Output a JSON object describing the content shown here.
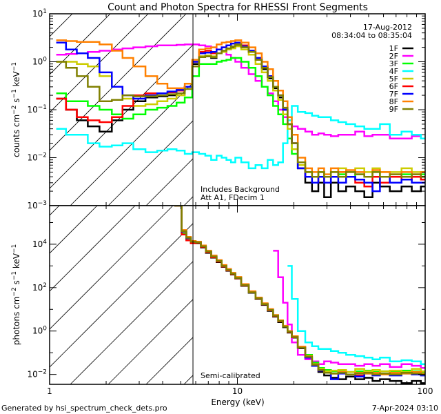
{
  "title": "Count and Photon Spectra for RHESSI Front Segments",
  "footer_left": "Generated by hsi_spectrum_check_dets.pro",
  "footer_right": "7-Apr-2024 03:10",
  "legend_header": {
    "date": "17-Aug-2012",
    "time_range": "08:34:04 to 08:35:04"
  },
  "colors": {
    "1F": "#000000",
    "2F": "#ff00ff",
    "3F": "#00ff00",
    "4F": "#00ffff",
    "5F": "#cccc00",
    "6F": "#ff0000",
    "7F": "#0000ff",
    "8F": "#ff8000",
    "9F": "#808000"
  },
  "chart_data": [
    {
      "type": "line",
      "panel": "top",
      "title": "Count and Photon Spectra for RHESSI Front Segments",
      "xlabel": "",
      "ylabel": "counts cm^-2 s^-1 keV^-1",
      "xscale": "log",
      "yscale": "log",
      "xlim": [
        1,
        100
      ],
      "ylim": [
        0.001,
        10
      ],
      "xticks": [
        "1",
        "10",
        "100"
      ],
      "yticks": [
        {
          "v": 10,
          "label": "10",
          "exp": "1"
        },
        {
          "v": 1,
          "label": "10",
          "exp": "0"
        },
        {
          "v": 0.1,
          "label": "10",
          "exp": "-1"
        },
        {
          "v": 0.01,
          "label": "10",
          "exp": "-2"
        },
        {
          "v": 0.001,
          "label": "10",
          "exp": "-3"
        }
      ],
      "annotations": [
        "Includes Background",
        "Att A1, FDecim 1"
      ],
      "threshold_keV": 5.8,
      "legend": "top-right",
      "x": [
        1.15,
        1.3,
        1.5,
        1.7,
        2.0,
        2.3,
        2.6,
        3.0,
        3.5,
        4.0,
        4.5,
        5.0,
        5.5,
        6.0,
        6.5,
        7.0,
        7.5,
        8.0,
        8.5,
        9.0,
        9.5,
        10,
        11,
        12,
        13,
        14,
        15,
        16,
        17,
        18,
        19,
        20,
        22,
        24,
        26,
        28,
        30,
        33,
        36,
        40,
        45,
        50,
        55,
        60,
        70,
        80,
        90,
        100
      ],
      "series": [
        {
          "name": "1F",
          "values": [
            0.17,
            0.1,
            0.06,
            0.045,
            0.035,
            0.06,
            0.1,
            0.15,
            0.18,
            0.19,
            0.2,
            0.22,
            0.3,
            0.9,
            1.3,
            1.3,
            1.2,
            1.5,
            1.6,
            1.8,
            2.0,
            2.2,
            2.0,
            1.6,
            1.1,
            0.7,
            0.45,
            0.28,
            0.18,
            0.1,
            0.05,
            0.02,
            0.006,
            0.003,
            0.002,
            0.003,
            0.0015,
            0.003,
            0.002,
            0.0025,
            0.002,
            0.0015,
            0.003,
            0.0025,
            0.002,
            0.0025,
            0.002,
            0.0025
          ]
        },
        {
          "name": "2F",
          "values": [
            1.4,
            1.45,
            1.5,
            1.6,
            1.7,
            1.8,
            1.9,
            2.0,
            2.1,
            2.2,
            2.2,
            2.25,
            2.3,
            2.3,
            2.2,
            2.1,
            2.0,
            1.8,
            1.6,
            1.4,
            1.2,
            1.0,
            0.75,
            0.55,
            0.4,
            0.3,
            0.22,
            0.15,
            0.1,
            0.07,
            0.05,
            0.045,
            0.04,
            0.035,
            0.03,
            0.032,
            0.03,
            0.028,
            0.03,
            0.03,
            0.035,
            0.028,
            0.03,
            0.03,
            0.025,
            0.025,
            0.028,
            0.025
          ]
        },
        {
          "name": "3F",
          "values": [
            0.22,
            0.15,
            0.15,
            0.12,
            0.1,
            0.08,
            0.065,
            0.08,
            0.1,
            0.11,
            0.12,
            0.14,
            0.18,
            0.5,
            0.9,
            0.9,
            0.9,
            1.0,
            1.05,
            1.1,
            1.2,
            1.2,
            1.0,
            0.75,
            0.5,
            0.3,
            0.2,
            0.12,
            0.08,
            0.05,
            0.025,
            0.012,
            0.006,
            0.005,
            0.004,
            0.005,
            0.004,
            0.004,
            0.0045,
            0.004,
            0.0045,
            0.004,
            0.005,
            0.004,
            0.004,
            0.0045,
            0.004,
            0.0045
          ]
        },
        {
          "name": "4F",
          "values": [
            0.04,
            0.03,
            0.03,
            0.02,
            0.017,
            0.018,
            0.02,
            0.015,
            0.013,
            0.014,
            0.015,
            0.014,
            0.012,
            0.013,
            0.012,
            0.011,
            0.009,
            0.011,
            0.01,
            0.009,
            0.008,
            0.01,
            0.008,
            0.006,
            0.007,
            0.006,
            0.009,
            0.007,
            0.008,
            0.02,
            0.06,
            0.12,
            0.09,
            0.085,
            0.075,
            0.07,
            0.07,
            0.06,
            0.055,
            0.05,
            0.045,
            0.04,
            0.04,
            0.05,
            0.03,
            0.035,
            0.03,
            0.025
          ]
        },
        {
          "name": "5F",
          "values": [
            1.0,
            1.0,
            0.9,
            0.8,
            0.5,
            0.3,
            0.17,
            0.12,
            0.13,
            0.15,
            0.17,
            0.2,
            0.3,
            0.8,
            1.3,
            1.35,
            1.3,
            1.5,
            1.6,
            1.8,
            1.9,
            2.1,
            1.8,
            1.4,
            0.9,
            0.6,
            0.4,
            0.25,
            0.16,
            0.08,
            0.04,
            0.015,
            0.007,
            0.005,
            0.004,
            0.005,
            0.004,
            0.005,
            0.006,
            0.005,
            0.006,
            0.005,
            0.006,
            0.005,
            0.005,
            0.006,
            0.005,
            0.005
          ]
        },
        {
          "name": "6F",
          "values": [
            0.17,
            0.1,
            0.07,
            0.06,
            0.055,
            0.07,
            0.12,
            0.2,
            0.22,
            0.22,
            0.23,
            0.25,
            0.3,
            1.0,
            1.6,
            1.7,
            1.5,
            1.8,
            2.0,
            2.2,
            2.4,
            2.5,
            2.2,
            1.7,
            1.2,
            0.8,
            0.5,
            0.3,
            0.2,
            0.1,
            0.05,
            0.02,
            0.006,
            0.004,
            0.003,
            0.004,
            0.003,
            0.004,
            0.005,
            0.004,
            0.003,
            0.0025,
            0.004,
            0.003,
            0.004,
            0.0035,
            0.004,
            0.0035
          ]
        },
        {
          "name": "7F",
          "values": [
            2.5,
            1.8,
            1.5,
            1.2,
            0.6,
            0.3,
            0.2,
            0.17,
            0.2,
            0.22,
            0.24,
            0.26,
            0.3,
            1.0,
            1.5,
            1.55,
            1.6,
            1.8,
            2.0,
            2.2,
            2.4,
            2.5,
            2.1,
            1.7,
            1.2,
            0.8,
            0.5,
            0.3,
            0.2,
            0.1,
            0.05,
            0.02,
            0.006,
            0.004,
            0.003,
            0.004,
            0.003,
            0.004,
            0.003,
            0.004,
            0.0035,
            0.003,
            0.002,
            0.004,
            0.003,
            0.0035,
            0.003,
            0.003
          ]
        },
        {
          "name": "8F",
          "values": [
            2.8,
            2.7,
            2.6,
            2.6,
            2.3,
            1.7,
            1.2,
            0.8,
            0.5,
            0.35,
            0.28,
            0.28,
            0.35,
            1.1,
            1.8,
            1.9,
            2.0,
            2.3,
            2.5,
            2.6,
            2.7,
            2.8,
            2.5,
            2.0,
            1.5,
            1.0,
            0.7,
            0.4,
            0.25,
            0.15,
            0.07,
            0.03,
            0.01,
            0.006,
            0.005,
            0.006,
            0.0045,
            0.006,
            0.005,
            0.0055,
            0.005,
            0.004,
            0.0055,
            0.005,
            0.0045,
            0.005,
            0.0045,
            0.005
          ]
        },
        {
          "name": "9F",
          "values": [
            1.0,
            0.75,
            0.5,
            0.3,
            0.15,
            0.16,
            0.2,
            0.19,
            0.19,
            0.2,
            0.21,
            0.22,
            0.27,
            0.8,
            1.25,
            1.3,
            1.25,
            1.5,
            1.7,
            1.9,
            2.1,
            2.3,
            2.0,
            1.6,
            1.1,
            0.75,
            0.48,
            0.3,
            0.2,
            0.11,
            0.05,
            0.02,
            0.008,
            0.005,
            0.004,
            0.005,
            0.004,
            0.005,
            0.004,
            0.005,
            0.0045,
            0.004,
            0.005,
            0.004,
            0.0045,
            0.004,
            0.0045,
            0.004
          ]
        }
      ]
    },
    {
      "type": "line",
      "panel": "bottom",
      "xlabel": "Energy (keV)",
      "ylabel": "photons cm^-2 s^-1 keV^-1",
      "xscale": "log",
      "yscale": "log",
      "xlim": [
        1,
        100
      ],
      "ylim": [
        0.0035,
        600000
      ],
      "xticks": [
        "1",
        "10",
        "100"
      ],
      "yticks": [
        {
          "v": 10000,
          "label": "10",
          "exp": "4"
        },
        {
          "v": 100,
          "label": "10",
          "exp": "2"
        },
        {
          "v": 1,
          "label": "10",
          "exp": "0"
        },
        {
          "v": 0.01,
          "label": "10",
          "exp": "-2"
        }
      ],
      "annotations": [
        "Semi-calibrated"
      ],
      "threshold_keV": 5.8,
      "x": [
        4.9,
        5.2,
        5.5,
        5.8,
        6.2,
        6.6,
        7.0,
        7.5,
        8,
        8.5,
        9,
        9.5,
        10,
        11,
        12,
        13,
        14,
        15,
        16,
        17,
        18,
        19,
        20,
        22,
        24,
        26,
        28,
        30,
        33,
        36,
        40,
        45,
        50,
        55,
        60,
        70,
        80,
        90,
        100
      ],
      "series": [
        {
          "name": "1F",
          "values": [
            600000,
            40000,
            20000,
            12000,
            11000,
            7000,
            4000,
            2400,
            1500,
            900,
            600,
            400,
            260,
            120,
            58,
            30,
            16,
            8.5,
            4.6,
            2.6,
            1.5,
            0.85,
            0.5,
            0.16,
            0.06,
            0.025,
            0.013,
            0.009,
            0.007,
            0.006,
            0.008,
            0.006,
            0.007,
            0.005,
            0.006,
            0.005,
            0.004,
            0.005,
            0.004
          ]
        },
        {
          "name": "2F",
          "values": [
            null,
            null,
            null,
            null,
            null,
            null,
            null,
            null,
            null,
            null,
            null,
            null,
            null,
            null,
            null,
            null,
            null,
            null,
            5000,
            300,
            20,
            2,
            0.3,
            0.08,
            0.05,
            0.04,
            0.03,
            0.04,
            0.035,
            0.03,
            0.03,
            0.025,
            0.03,
            0.025,
            0.03,
            0.022,
            0.03,
            0.025,
            0.02
          ]
        },
        {
          "name": "3F",
          "values": [
            600000,
            30000,
            16000,
            12000,
            12000,
            8000,
            4500,
            2700,
            1700,
            1000,
            650,
            440,
            280,
            130,
            60,
            32,
            18,
            9.5,
            5.2,
            2.9,
            1.6,
            0.95,
            0.55,
            0.18,
            0.08,
            0.035,
            0.02,
            0.016,
            0.014,
            0.015,
            0.013,
            0.014,
            0.015,
            0.013,
            0.014,
            0.013,
            0.015,
            0.014,
            0.013
          ]
        },
        {
          "name": "4F",
          "values": [
            null,
            null,
            null,
            null,
            null,
            null,
            null,
            null,
            null,
            null,
            null,
            null,
            null,
            null,
            null,
            null,
            null,
            null,
            null,
            null,
            null,
            1000,
            30,
            1.0,
            0.3,
            0.2,
            0.15,
            0.15,
            0.12,
            0.1,
            0.08,
            0.07,
            0.06,
            0.05,
            0.06,
            0.04,
            0.045,
            0.04,
            0.03
          ]
        },
        {
          "name": "5F",
          "values": [
            600000,
            35000,
            18000,
            13000,
            12000,
            8000,
            4600,
            2700,
            1700,
            1000,
            660,
            440,
            280,
            130,
            62,
            33,
            18,
            9.8,
            5.3,
            3.0,
            1.7,
            1.0,
            0.56,
            0.18,
            0.07,
            0.03,
            0.018,
            0.014,
            0.015,
            0.016,
            0.013,
            0.018,
            0.014,
            0.016,
            0.014,
            0.015,
            0.013,
            0.018,
            0.014
          ]
        },
        {
          "name": "6F",
          "values": [
            600000,
            28000,
            15000,
            11000,
            11500,
            7500,
            4300,
            2500,
            1600,
            950,
            620,
            420,
            270,
            125,
            60,
            31,
            17,
            9.0,
            4.9,
            2.8,
            1.6,
            0.9,
            0.52,
            0.17,
            0.065,
            0.028,
            0.015,
            0.012,
            0.011,
            0.012,
            0.01,
            0.009,
            0.012,
            0.01,
            0.011,
            0.01,
            0.012,
            0.011,
            0.01
          ]
        },
        {
          "name": "7F",
          "values": [
            600000,
            38000,
            19000,
            13000,
            12500,
            8200,
            4700,
            2800,
            1750,
            1050,
            680,
            450,
            290,
            135,
            63,
            33,
            18,
            9.6,
            5.2,
            2.9,
            1.65,
            0.95,
            0.54,
            0.17,
            0.06,
            0.025,
            0.015,
            0.012,
            0.006,
            0.011,
            0.01,
            0.008,
            0.011,
            0.009,
            0.01,
            0.009,
            0.011,
            0.01,
            0.009
          ]
        },
        {
          "name": "8F",
          "values": [
            600000,
            45000,
            22000,
            14000,
            13000,
            8700,
            5000,
            3000,
            1850,
            1100,
            720,
            480,
            310,
            145,
            68,
            35,
            19,
            10.2,
            5.5,
            3.1,
            1.75,
            1.0,
            0.58,
            0.19,
            0.07,
            0.03,
            0.016,
            0.012,
            0.011,
            0.013,
            0.01,
            0.012,
            0.011,
            0.012,
            0.01,
            0.012,
            0.011,
            0.013,
            0.011
          ]
        },
        {
          "name": "9F",
          "values": [
            600000,
            40000,
            20000,
            13000,
            12000,
            8000,
            4600,
            2700,
            1700,
            1000,
            660,
            440,
            280,
            130,
            61,
            32,
            17.5,
            9.4,
            5.1,
            2.9,
            1.6,
            0.93,
            0.53,
            0.17,
            0.065,
            0.028,
            0.016,
            0.012,
            0.011,
            0.012,
            0.01,
            0.011,
            0.012,
            0.01,
            0.011,
            0.01,
            0.012,
            0.011,
            0.01
          ]
        }
      ]
    }
  ]
}
